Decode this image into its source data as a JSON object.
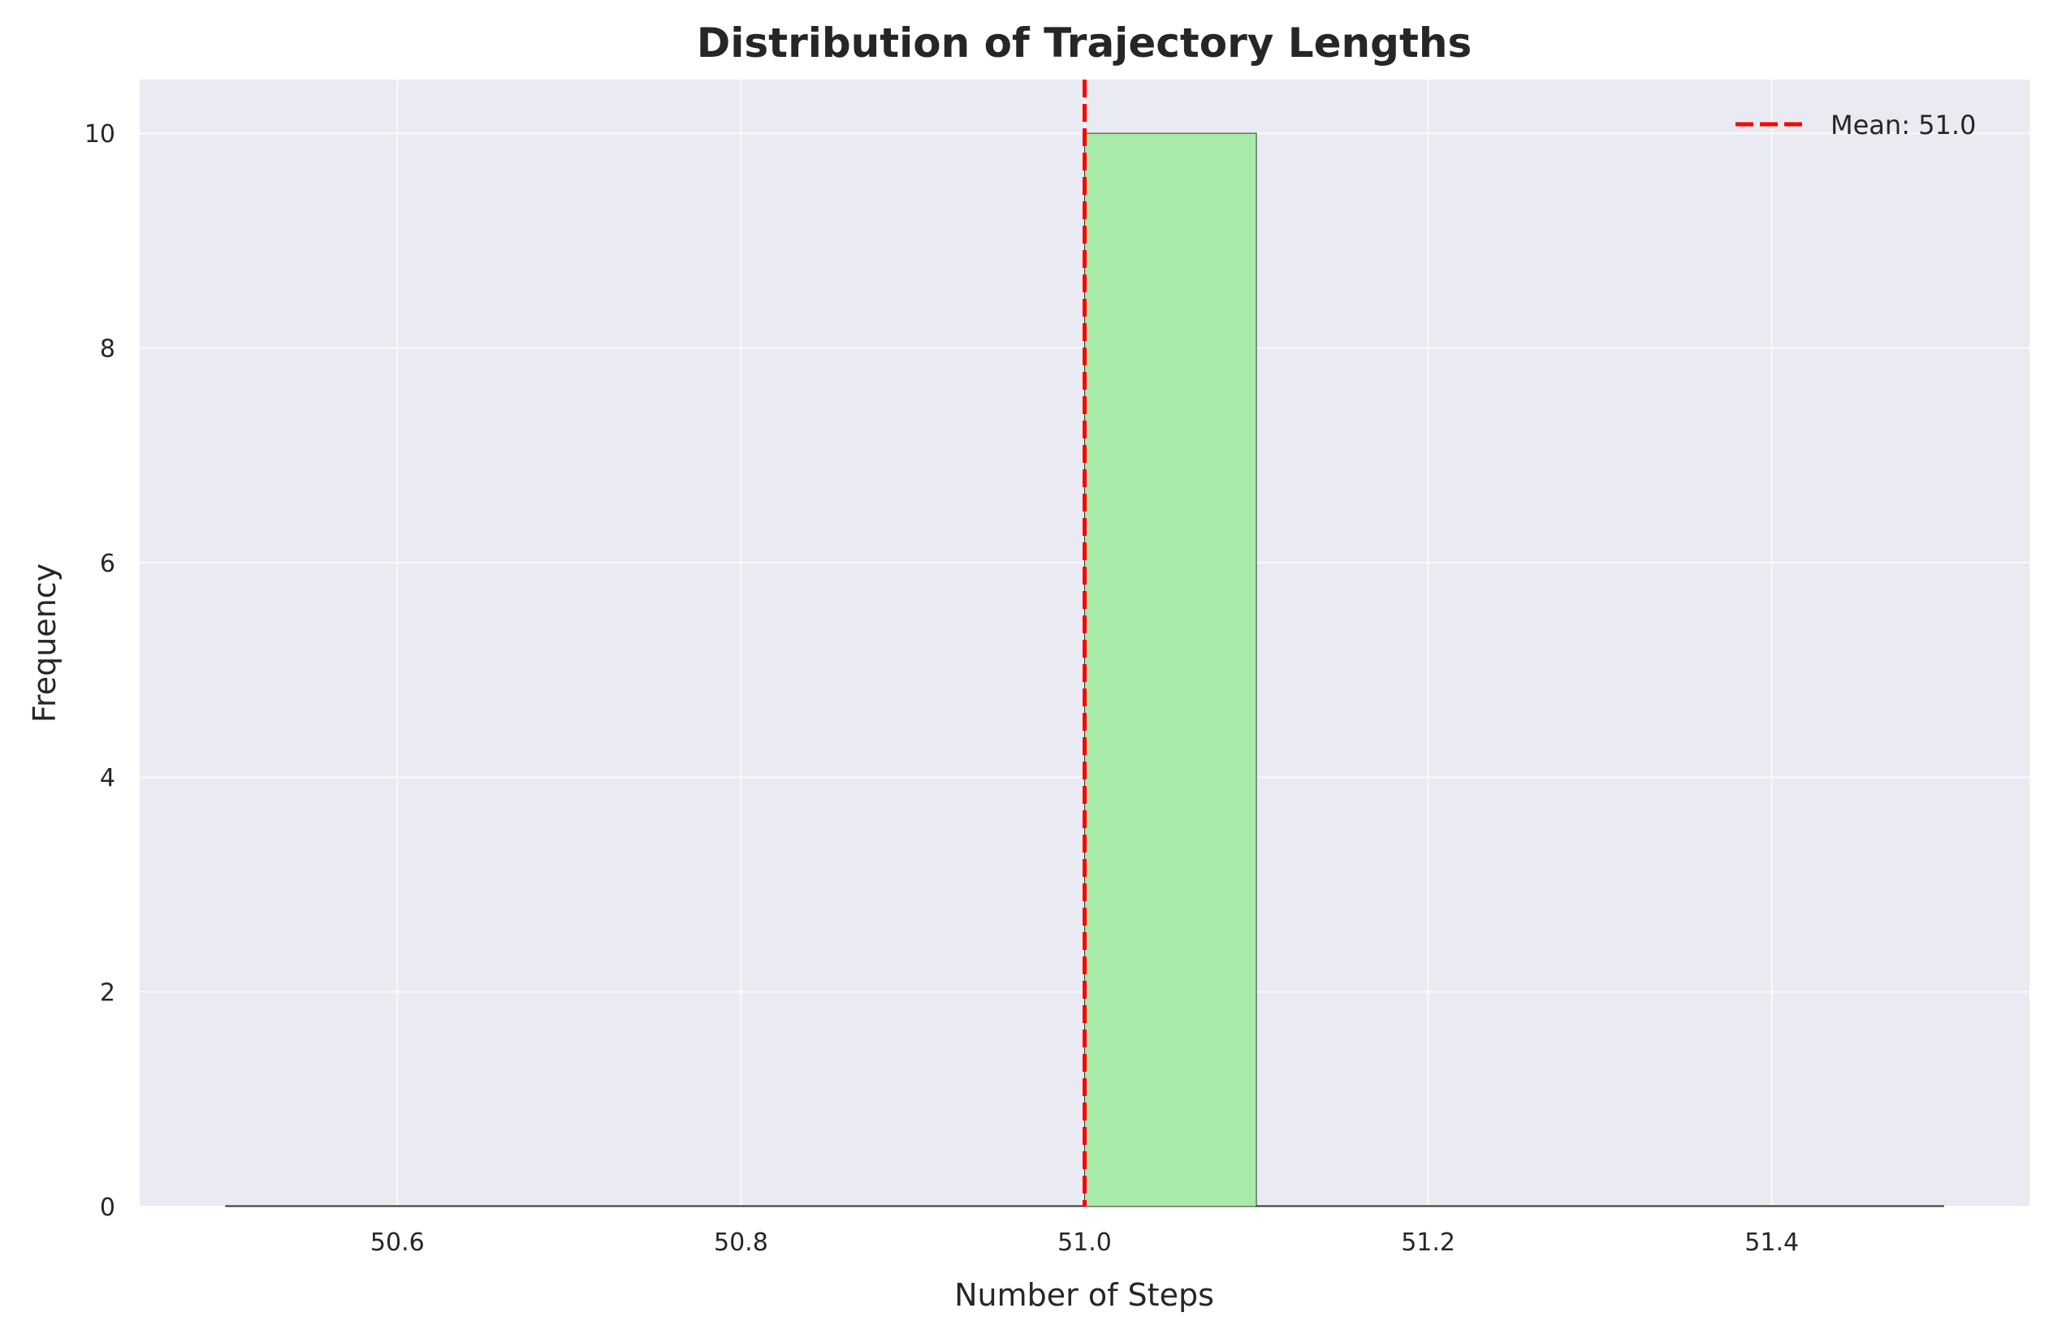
{
  "chart_data": {
    "type": "bar",
    "title": "Distribution of Trajectory Lengths",
    "xlabel": "Number of Steps",
    "ylabel": "Frequency",
    "xlim": [
      50.45,
      51.55
    ],
    "ylim": [
      0,
      10.5
    ],
    "xticks": [
      50.6,
      50.8,
      51.0,
      51.2,
      51.4
    ],
    "xtick_labels": [
      "50.6",
      "50.8",
      "51.0",
      "51.2",
      "51.4"
    ],
    "yticks": [
      0,
      2,
      4,
      6,
      8,
      10
    ],
    "ytick_labels": [
      "0",
      "2",
      "4",
      "6",
      "8",
      "10"
    ],
    "bins": [
      {
        "x0": 50.5,
        "x1": 50.6,
        "count": 0
      },
      {
        "x0": 50.6,
        "x1": 50.7,
        "count": 0
      },
      {
        "x0": 50.7,
        "x1": 50.8,
        "count": 0
      },
      {
        "x0": 50.8,
        "x1": 50.9,
        "count": 0
      },
      {
        "x0": 50.9,
        "x1": 51.0,
        "count": 0
      },
      {
        "x0": 51.0,
        "x1": 51.1,
        "count": 10
      },
      {
        "x0": 51.1,
        "x1": 51.2,
        "count": 0
      },
      {
        "x0": 51.2,
        "x1": 51.3,
        "count": 0
      },
      {
        "x0": 51.3,
        "x1": 51.4,
        "count": 0
      },
      {
        "x0": 51.4,
        "x1": 51.5,
        "count": 0
      }
    ],
    "mean_line": {
      "value": 51.0,
      "label": "Mean: 51.0",
      "color": "#ff0000",
      "style": "dashed"
    },
    "bar_color": "#a8eba8",
    "bar_edge_color": "#333333",
    "background_color": "#eaeaf2",
    "grid": true,
    "legend_position": "top-right"
  }
}
